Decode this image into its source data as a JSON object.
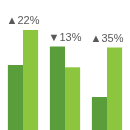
{
  "chart_data": {
    "type": "bar",
    "categories": [
      null,
      null,
      null
    ],
    "series": [
      {
        "color": "#5a9e3c",
        "values": [
          59,
          76,
          30
        ]
      },
      {
        "color": "#8cc63f",
        "values": [
          91,
          57,
          75
        ]
      }
    ],
    "annotations": [
      "▲22%",
      "▼13%",
      "▲35%"
    ],
    "ylim": [
      0,
      100
    ],
    "grid": false,
    "tick_labels": false
  }
}
